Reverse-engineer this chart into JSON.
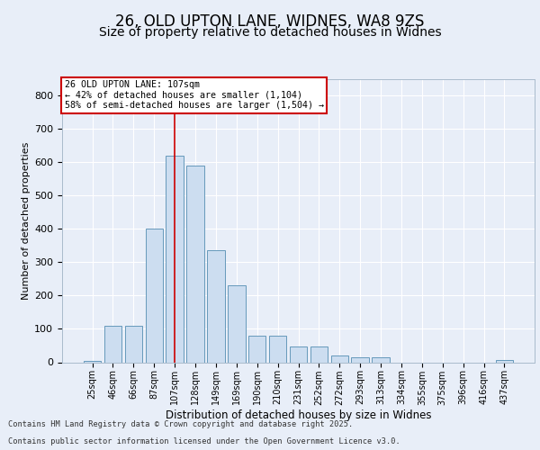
{
  "title1": "26, OLD UPTON LANE, WIDNES, WA8 9ZS",
  "title2": "Size of property relative to detached houses in Widnes",
  "xlabel": "Distribution of detached houses by size in Widnes",
  "ylabel": "Number of detached properties",
  "categories": [
    "25sqm",
    "46sqm",
    "66sqm",
    "87sqm",
    "107sqm",
    "128sqm",
    "149sqm",
    "169sqm",
    "190sqm",
    "210sqm",
    "231sqm",
    "252sqm",
    "272sqm",
    "293sqm",
    "313sqm",
    "334sqm",
    "355sqm",
    "375sqm",
    "396sqm",
    "416sqm",
    "437sqm"
  ],
  "values": [
    5,
    108,
    108,
    400,
    620,
    590,
    335,
    232,
    80,
    80,
    47,
    47,
    20,
    15,
    15,
    0,
    0,
    0,
    0,
    0,
    8
  ],
  "bar_color": "#ccddf0",
  "bar_edge_color": "#6699bb",
  "marker_index": 4,
  "annotation_line1": "26 OLD UPTON LANE: 107sqm",
  "annotation_line2": "← 42% of detached houses are smaller (1,104)",
  "annotation_line3": "58% of semi-detached houses are larger (1,504) →",
  "vline_color": "#cc0000",
  "annotation_edge_color": "#cc0000",
  "ylim": [
    0,
    850
  ],
  "yticks": [
    0,
    100,
    200,
    300,
    400,
    500,
    600,
    700,
    800
  ],
  "bg_color": "#e8eef8",
  "plot_bg_color": "#e8eef8",
  "footer1": "Contains HM Land Registry data © Crown copyright and database right 2025.",
  "footer2": "Contains public sector information licensed under the Open Government Licence v3.0.",
  "title1_fontsize": 12,
  "title2_fontsize": 10
}
